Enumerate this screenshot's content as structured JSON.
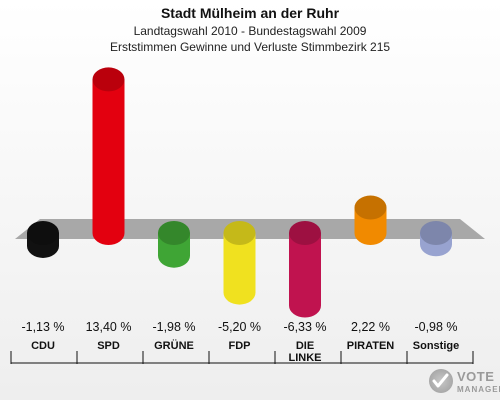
{
  "chart_data": {
    "type": "bar",
    "title": "Stadt Mülheim an der Ruhr",
    "subtitle_1": "Landtagswahl 2010 - Bundestagswahl 2009",
    "subtitle_2": "Erststimmen Gewinne und Verluste Stimmbezirk 215",
    "categories": [
      "CDU",
      "SPD",
      "GRÜNE",
      "FDP",
      "DIE LINKE",
      "PIRATEN",
      "Sonstige"
    ],
    "values": [
      -1.13,
      13.4,
      -1.98,
      -5.2,
      -6.33,
      2.22,
      -0.98
    ],
    "value_labels": [
      "-1,13 %",
      "13,40 %",
      "-1,98 %",
      "-5,20 %",
      "-6,33 %",
      "2,22 %",
      "-0,98 %"
    ],
    "colors": [
      "#111111",
      "#e3000f",
      "#3fa535",
      "#f0e11f",
      "#c0134f",
      "#f18a00",
      "#98a3d0"
    ],
    "unit": "%"
  },
  "watermark": {
    "line1": "VOTE",
    "line2": "MANAGER"
  }
}
